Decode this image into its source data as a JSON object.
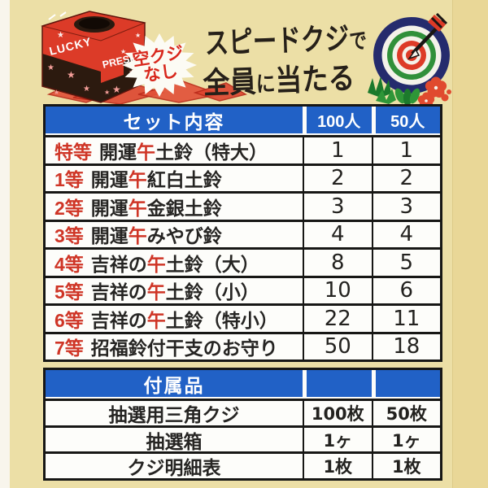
{
  "page": {
    "background": "#ecdfa6",
    "accent_blue": "#2161c6",
    "accent_red": "#cf3526"
  },
  "header": {
    "badge_line1": "空クジ",
    "badge_line2": "なし",
    "title_line1_main": "スピードクジ",
    "title_line1_particle": "で",
    "title_line2_a": "全員",
    "title_line2_particle": "に",
    "title_line2_b": "当たる",
    "box_label_top": "LUCKY",
    "box_label_side": "PRESENT"
  },
  "set_table": {
    "title": "セット内容",
    "col_100": "100人",
    "col_50": "50人",
    "rows": [
      {
        "rank": "特等",
        "pre": "開運",
        "red": "午",
        "post": "土鈴（特大）",
        "v100": "1",
        "v50": "1"
      },
      {
        "rank": "1等",
        "pre": "開運",
        "red": "午",
        "post": "紅白土鈴",
        "v100": "2",
        "v50": "2"
      },
      {
        "rank": "2等",
        "pre": "開運",
        "red": "午",
        "post": "金銀土鈴",
        "v100": "3",
        "v50": "3"
      },
      {
        "rank": "3等",
        "pre": "開運",
        "red": "午",
        "post": "みやび鈴",
        "v100": "4",
        "v50": "4"
      },
      {
        "rank": "4等",
        "pre": "吉祥の",
        "red": "午",
        "post": "土鈴（大）",
        "v100": "8",
        "v50": "5"
      },
      {
        "rank": "5等",
        "pre": "吉祥の",
        "red": "午",
        "post": "土鈴（小）",
        "v100": "10",
        "v50": "6"
      },
      {
        "rank": "6等",
        "pre": "吉祥の",
        "red": "午",
        "post": "土鈴（特小）",
        "v100": "22",
        "v50": "11"
      },
      {
        "rank": "7等",
        "pre": "招福鈴付干支のお守り",
        "red": "",
        "post": "",
        "v100": "50",
        "v50": "18"
      }
    ]
  },
  "accessory_table": {
    "title": "付属品",
    "col_100": "",
    "col_50": "",
    "rows": [
      {
        "label": "抽選用三角クジ",
        "v100": "100枚",
        "v50": "50枚"
      },
      {
        "label": "抽選箱",
        "v100": "1ヶ",
        "v50": "1ヶ"
      },
      {
        "label": "クジ明細表",
        "v100": "1枚",
        "v50": "1枚"
      }
    ]
  }
}
